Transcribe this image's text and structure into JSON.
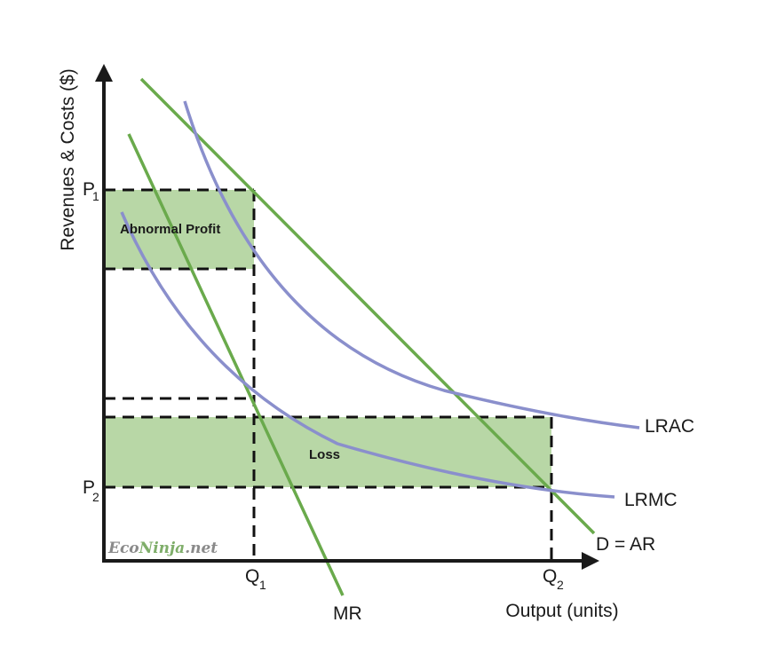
{
  "axes": {
    "y_label": "Revenues & Costs ($)",
    "x_label": "Output (units)"
  },
  "ticks": {
    "p1_main": "P",
    "p1_sub": "1",
    "p2_main": "P",
    "p2_sub": "2",
    "q1_main": "Q",
    "q1_sub": "1",
    "q2_main": "Q",
    "q2_sub": "2"
  },
  "curves": {
    "lrac": "LRAC",
    "lrmc": "LRMC",
    "demand": "D = AR",
    "mr": "MR"
  },
  "regions": {
    "profit": "Abnormal Profit",
    "loss": "Loss"
  },
  "watermark": {
    "part1": "Eco",
    "part2": "Ninja",
    "part3": ".net"
  },
  "colors": {
    "green_line": "#6aaa4c",
    "purple_line": "#8a8fcc",
    "shade": "#b8d7a6",
    "axis": "#1a1a1a"
  }
}
